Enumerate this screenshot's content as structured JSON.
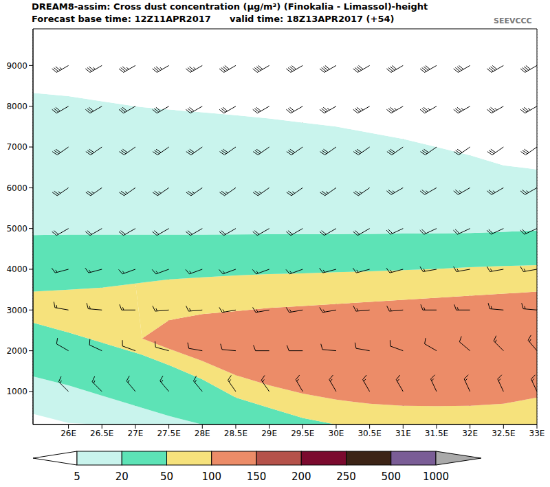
{
  "chart_data": {
    "type": "area",
    "title": "DREAM8-assim: Cross dust concentration (μg/m³) (Finokalia - Limassol)-height",
    "subtitle": "Forecast base time: 12Z11APR2017      valid time: 18Z13APR2017 (+54)",
    "logo": "SEEVCCC",
    "stacked": true,
    "grid": "x",
    "x": [
      25.47,
      26,
      26.5,
      27,
      27.1,
      27.5,
      28,
      28.5,
      29,
      29.5,
      30,
      30.5,
      31,
      31.5,
      32,
      32.5,
      33
    ],
    "xlim": [
      25.47,
      33
    ],
    "xticks": [
      {
        "value": 26,
        "label": "26E"
      },
      {
        "value": 26.5,
        "label": "26.5E"
      },
      {
        "value": 27,
        "label": "27E"
      },
      {
        "value": 27.5,
        "label": "27.5E"
      },
      {
        "value": 28,
        "label": "28E"
      },
      {
        "value": 28.5,
        "label": "28.5E"
      },
      {
        "value": 29,
        "label": "29E"
      },
      {
        "value": 29.5,
        "label": "29.5E"
      },
      {
        "value": 30,
        "label": "30E"
      },
      {
        "value": 30.5,
        "label": "30.5E"
      },
      {
        "value": 31,
        "label": "31E"
      },
      {
        "value": 31.5,
        "label": "31.5E"
      },
      {
        "value": 32,
        "label": "32E"
      },
      {
        "value": 32.5,
        "label": "32.5E"
      },
      {
        "value": 33,
        "label": "33E"
      }
    ],
    "ylim": [
      190,
      9900
    ],
    "yticks": [
      1000,
      2000,
      3000,
      4000,
      5000,
      6000,
      7000,
      8000,
      9000
    ],
    "layers": [
      {
        "band": 0,
        "values": [
          450,
          230,
          190,
          190,
          190,
          190,
          190,
          190,
          190,
          190,
          190,
          190,
          190,
          190,
          190,
          190,
          190
        ]
      },
      {
        "band": 1,
        "values": [
          920,
          920,
          710,
          460,
          410,
          210,
          0,
          0,
          0,
          0,
          0,
          0,
          0,
          0,
          0,
          0,
          0
        ]
      },
      {
        "band": 2,
        "values": [
          1320,
          1300,
          1300,
          1300,
          1300,
          1250,
          1110,
          660,
          410,
          160,
          0,
          0,
          0,
          0,
          0,
          0,
          0
        ]
      },
      {
        "band": 3,
        "values": [
          760,
          1050,
          1350,
          1700,
          400,
          400,
          450,
          550,
          550,
          600,
          610,
          510,
          460,
          450,
          460,
          510,
          660
        ]
      },
      {
        "band": 4,
        "values": [
          0,
          0,
          0,
          0,
          0,
          700,
          1150,
          1570,
          1900,
          2150,
          2350,
          2500,
          2600,
          2660,
          2700,
          2700,
          2600
        ]
      },
      {
        "band": 3,
        "values": [
          0,
          0,
          0,
          0,
          1370,
          1000,
          900,
          880,
          830,
          800,
          780,
          750,
          730,
          710,
          700,
          680,
          650
        ]
      },
      {
        "band": 2,
        "values": [
          1390,
          1350,
          1300,
          1200,
          1180,
          1100,
          1050,
          1005,
          980,
          960,
          935,
          920,
          895,
          870,
          840,
          840,
          850
        ]
      },
      {
        "band": 1,
        "values": [
          3490,
          3400,
          3270,
          3150,
          3130,
          3070,
          3000,
          2925,
          2840,
          2740,
          2635,
          2480,
          2325,
          2120,
          1910,
          1630,
          1500
        ]
      },
      {
        "band": 0,
        "values": [
          1570,
          1650,
          1780,
          1900,
          1920,
          1980,
          2050,
          2120,
          2200,
          2300,
          2400,
          2550,
          2700,
          2900,
          3100,
          3350,
          3450
        ]
      }
    ],
    "colorbar": {
      "ticks": [
        5,
        20,
        50,
        100,
        150,
        200,
        250,
        500,
        1000
      ],
      "colors": [
        "#ffffff",
        "#c9f4ed",
        "#5de3b6",
        "#f6e27c",
        "#ec8c68",
        "#b5524a",
        "#7b0a2e",
        "#3c2416",
        "#7a5d96",
        "#aaaaaa"
      ]
    },
    "wind": {
      "x": [
        26,
        26.5,
        27,
        27.5,
        28,
        28.5,
        29,
        29.5,
        30,
        30.5,
        31,
        31.5,
        32,
        32.5,
        33
      ],
      "heights": [
        1000,
        2000,
        3000,
        4000,
        5000,
        6000,
        7000,
        8000,
        9000
      ],
      "direction": [
        [
          315,
          315,
          320,
          320,
          320,
          325,
          325,
          330,
          330,
          330,
          330,
          335,
          335,
          335,
          335
        ],
        [
          300,
          295,
          290,
          285,
          280,
          275,
          270,
          270,
          275,
          280,
          290,
          300,
          310,
          315,
          320
        ],
        [
          280,
          275,
          270,
          265,
          265,
          260,
          260,
          260,
          260,
          265,
          265,
          270,
          270,
          275,
          275
        ],
        [
          255,
          255,
          250,
          250,
          250,
          250,
          250,
          250,
          255,
          255,
          255,
          260,
          260,
          260,
          260
        ],
        [
          240,
          240,
          240,
          240,
          240,
          240,
          240,
          240,
          240,
          240,
          245,
          245,
          245,
          245,
          245
        ],
        [
          235,
          235,
          235,
          235,
          235,
          235,
          235,
          235,
          235,
          235,
          240,
          240,
          240,
          240,
          240
        ],
        [
          235,
          235,
          235,
          235,
          235,
          235,
          235,
          235,
          235,
          235,
          235,
          235,
          235,
          235,
          235
        ],
        [
          240,
          240,
          240,
          240,
          240,
          240,
          240,
          240,
          240,
          240,
          240,
          240,
          240,
          240,
          240
        ],
        [
          240,
          240,
          240,
          240,
          240,
          240,
          240,
          240,
          240,
          240,
          240,
          240,
          240,
          240,
          240
        ]
      ],
      "speed": [
        [
          15,
          15,
          15,
          15,
          15,
          15,
          15,
          15,
          15,
          15,
          15,
          15,
          15,
          15,
          15
        ],
        [
          10,
          10,
          10,
          10,
          10,
          10,
          10,
          10,
          10,
          10,
          10,
          10,
          10,
          15,
          15
        ],
        [
          15,
          15,
          15,
          15,
          15,
          15,
          15,
          15,
          15,
          15,
          15,
          15,
          15,
          15,
          15
        ],
        [
          15,
          15,
          15,
          15,
          15,
          15,
          15,
          15,
          15,
          15,
          15,
          15,
          15,
          15,
          15
        ],
        [
          20,
          20,
          20,
          20,
          20,
          20,
          20,
          20,
          20,
          20,
          20,
          20,
          20,
          20,
          20
        ],
        [
          25,
          25,
          25,
          25,
          25,
          25,
          25,
          25,
          25,
          25,
          25,
          25,
          25,
          25,
          25
        ],
        [
          30,
          30,
          30,
          30,
          30,
          30,
          30,
          30,
          30,
          30,
          30,
          30,
          30,
          30,
          30
        ],
        [
          30,
          30,
          30,
          30,
          30,
          30,
          30,
          30,
          35,
          35,
          35,
          35,
          35,
          35,
          35
        ],
        [
          35,
          35,
          35,
          35,
          35,
          40,
          40,
          40,
          40,
          40,
          40,
          40,
          40,
          40,
          40
        ]
      ]
    }
  }
}
